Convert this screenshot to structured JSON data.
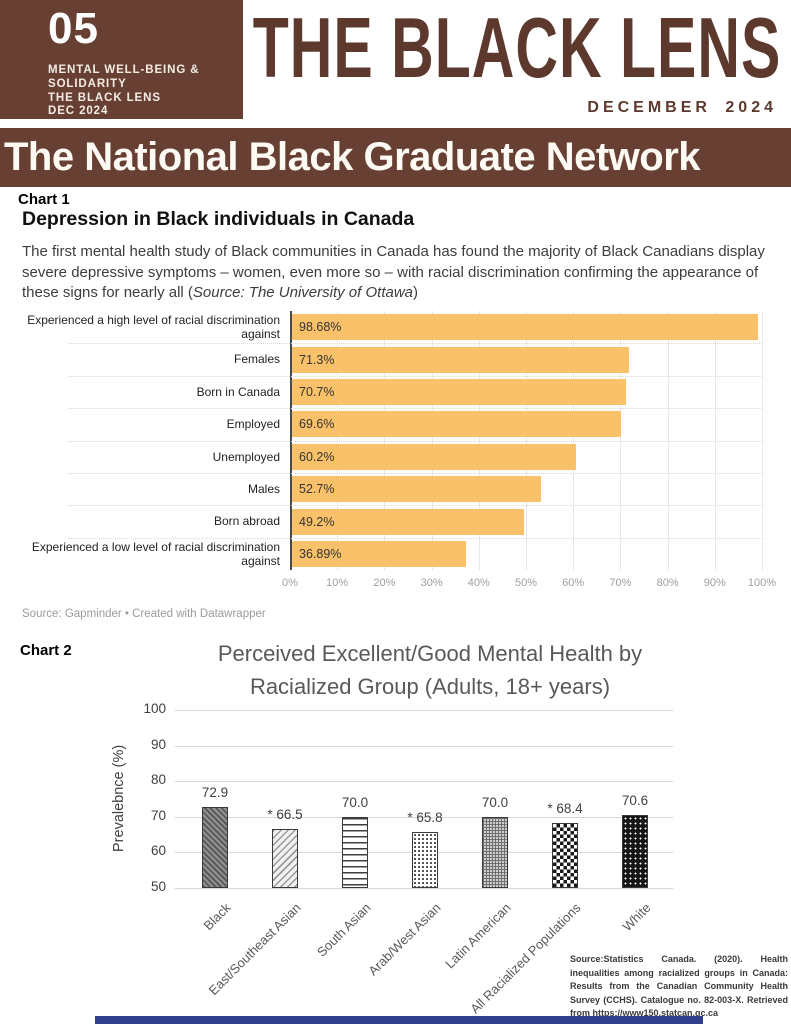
{
  "colors": {
    "brand_brown": "#684033",
    "headline_brown": "#5d392d",
    "accent_orange": "#f9c169",
    "footer_navy": "#323f8f"
  },
  "masthead": {
    "issue_number": "05",
    "issue_lines": [
      "MENTAL WELL-BEING &",
      "SOLIDARITY",
      "THE BLACK LENS",
      "DEC 2024"
    ],
    "title": "THE BLACK LENS",
    "date": "DECEMBER 2024"
  },
  "banner": {
    "title": "The National Black Graduate Network"
  },
  "chart1": {
    "label": "Chart 1",
    "title": "Depression in Black individuals in Canada",
    "description": "The first mental health study of Black communities in Canada has found the majority of Black Canadians display severe depressive symptoms – women, even more so – with racial discrimination confirming the appearance of these signs for nearly all (",
    "description_source": "Source: The University of Ottawa",
    "description_close": ")",
    "source": "Source: Gapminder • Created with Datawrapper"
  },
  "chart2": {
    "label": "Chart 2",
    "source": "Source:Statistics Canada. (2020). Health inequalities among racialized groups in Canada: Results from the Canadian Community Health Survey (CCHS). Catalogue no. 82-003-X. Retrieved from https://www150.statcan.gc.ca"
  },
  "chart_data": [
    {
      "type": "bar",
      "orientation": "horizontal",
      "title": "Depression in Black individuals in Canada",
      "categories": [
        "Experienced a high level of racial discrimination against",
        "Females",
        "Born in Canada",
        "Employed",
        "Unemployed",
        "Males",
        "Born abroad",
        "Experienced a low level of racial discrimination against"
      ],
      "values": [
        98.68,
        71.3,
        70.7,
        69.6,
        60.2,
        52.7,
        49.2,
        36.89
      ],
      "value_labels": [
        "98.68%",
        "71.3%",
        "70.7%",
        "69.6%",
        "60.2%",
        "52.7%",
        "49.2%",
        "36.89%"
      ],
      "x_ticks": [
        "0%",
        "10%",
        "20%",
        "30%",
        "40%",
        "50%",
        "60%",
        "70%",
        "80%",
        "90%",
        "100%"
      ],
      "xlim": [
        0,
        100
      ],
      "bar_color": "#f9c169",
      "grid": true,
      "legend": false
    },
    {
      "type": "bar",
      "orientation": "vertical",
      "title": "Perceived Excellent/Good Mental Health by Racialized Group (Adults, 18+ years)",
      "title_lines": [
        "Perceived Excellent/Good Mental Health by",
        "Racialized Group (Adults, 18+ years)"
      ],
      "ylabel": "Prevalebnce (%)",
      "categories": [
        "Black",
        "East/Southeast Asian",
        "South Asian",
        "Arab/West Asian",
        "Latin American",
        "All Racialized Populations",
        "White"
      ],
      "values": [
        72.9,
        66.5,
        70.0,
        65.8,
        70.0,
        68.4,
        70.6
      ],
      "value_labels": [
        "72.9",
        "* 66.5",
        "70.0",
        "* 65.8",
        "70.0",
        "* 68.4",
        "70.6"
      ],
      "patterns": [
        "dark-diagonal",
        "light-diagonal",
        "horizontal-lines",
        "dots",
        "gray-grid",
        "checkerboard",
        "black-dots"
      ],
      "y_ticks": [
        100,
        90,
        80,
        70,
        60,
        50
      ],
      "ylim": [
        50,
        100
      ],
      "grid": true,
      "legend": false
    }
  ]
}
